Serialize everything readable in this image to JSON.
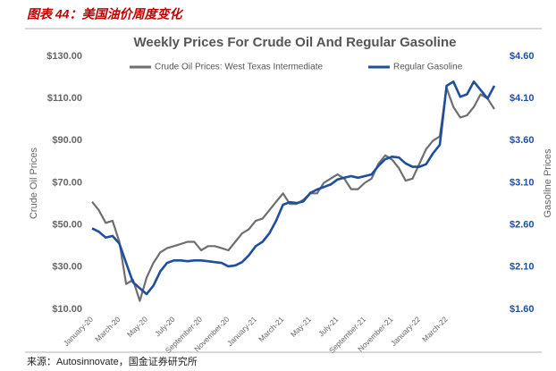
{
  "header": "图表 44：美国油价周度变化",
  "source": "来源：Autosinnovate，国金证券研究所",
  "chart_data": {
    "type": "line",
    "title": "Weekly Prices For Crude Oil And Regular Gasoline",
    "y_label": "Crude Oil Prices",
    "y2_label": "Gasoline Prices",
    "categories": [
      "January-20",
      null,
      null,
      null,
      "March-20",
      null,
      null,
      null,
      "May-20",
      null,
      null,
      null,
      "July-20",
      null,
      null,
      null,
      "September-20",
      null,
      null,
      null,
      "November-20",
      null,
      null,
      null,
      "January-21",
      null,
      null,
      null,
      "March-21",
      null,
      null,
      null,
      "May-21",
      null,
      null,
      null,
      "July-21",
      null,
      null,
      null,
      "September-21",
      null,
      null,
      null,
      "November-21",
      null,
      null,
      null,
      "January-22",
      null,
      null,
      null,
      "March-22",
      null,
      null,
      null,
      null,
      null,
      null,
      null
    ],
    "series": [
      {
        "name": "Crude Oil Prices: West Texas Intermediate",
        "color": "#6d6e71",
        "axis": "y",
        "values": [
          61,
          57,
          51,
          52,
          42,
          22,
          24,
          14,
          25,
          32,
          37,
          39,
          40,
          41,
          42,
          42,
          38,
          40,
          40,
          39,
          38,
          42,
          46,
          48,
          52,
          53,
          57,
          61,
          65,
          60,
          60,
          62,
          65,
          65,
          70,
          72,
          74,
          72,
          67,
          67,
          70,
          72,
          79,
          83,
          81,
          77,
          71,
          72,
          79,
          86,
          90,
          92,
          115,
          106,
          101,
          102,
          106,
          112,
          110,
          105
        ]
      },
      {
        "name": "Regular Gasoline",
        "color": "#1f4e9c",
        "axis": "y2",
        "values": [
          2.56,
          2.52,
          2.45,
          2.47,
          2.38,
          2.15,
          1.92,
          1.85,
          1.78,
          1.88,
          2.05,
          2.15,
          2.18,
          2.18,
          2.17,
          2.18,
          2.18,
          2.17,
          2.16,
          2.15,
          2.11,
          2.12,
          2.16,
          2.24,
          2.35,
          2.4,
          2.5,
          2.65,
          2.84,
          2.87,
          2.86,
          2.88,
          2.98,
          3.02,
          3.05,
          3.08,
          3.14,
          3.16,
          3.18,
          3.16,
          3.18,
          3.2,
          3.3,
          3.38,
          3.41,
          3.4,
          3.33,
          3.29,
          3.29,
          3.32,
          3.45,
          3.55,
          4.25,
          4.3,
          4.12,
          4.15,
          4.3,
          4.2,
          4.1,
          4.25
        ]
      }
    ],
    "ylim": [
      10,
      130
    ],
    "yticks": [
      {
        "value": 10,
        "label": "$10.00"
      },
      {
        "value": 30,
        "label": "$30.00"
      },
      {
        "value": 50,
        "label": "$50.00"
      },
      {
        "value": 70,
        "label": "$70.00"
      },
      {
        "value": 90,
        "label": "$90.00"
      },
      {
        "value": 110,
        "label": "$110.00"
      },
      {
        "value": 130,
        "label": "$130.00"
      }
    ],
    "y2lim": [
      1.6,
      4.6
    ],
    "y2ticks": [
      {
        "value": 1.6,
        "label": "$1.60"
      },
      {
        "value": 2.1,
        "label": "$2.10"
      },
      {
        "value": 2.6,
        "label": "$2.60"
      },
      {
        "value": 3.1,
        "label": "$3.10"
      },
      {
        "value": 3.6,
        "label": "$3.60"
      },
      {
        "value": 4.1,
        "label": "$4.10"
      },
      {
        "value": 4.6,
        "label": "$4.60"
      }
    ],
    "grid": false
  }
}
